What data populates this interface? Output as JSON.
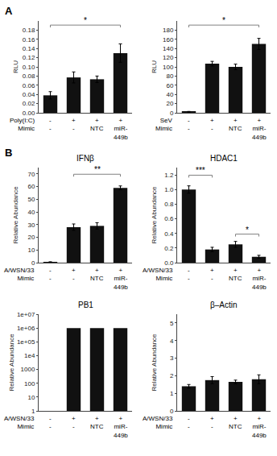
{
  "chart_data": [
    {
      "type": "bar",
      "panel_label": "A",
      "categories": [
        "-\n-",
        "+\n-",
        "+\nNTC",
        "+\nmiR-\n449b"
      ],
      "row_labels": [
        "Poly(I:C)",
        "Mimic"
      ],
      "ylabel": "RLU",
      "values": [
        0.038,
        0.077,
        0.073,
        0.13
      ],
      "errors": [
        0.008,
        0.012,
        0.007,
        0.02
      ],
      "color": "#111111",
      "ylim": [
        0,
        0.2
      ],
      "yticks": [
        {
          "value": 0,
          "label": "0.00"
        },
        0.02,
        0.04,
        0.06,
        0.08,
        {
          "value": 0.1,
          "label": "0.10"
        },
        0.12,
        0.14,
        0.16,
        0.18
      ],
      "grid": false,
      "annotations": [
        {
          "x1": 0,
          "x2": 3,
          "y": 0.191,
          "text": "*"
        }
      ]
    },
    {
      "type": "bar",
      "categories": [
        "-\n-",
        "+\n-",
        "+\nNTC",
        "+\nmiR-\n449b"
      ],
      "row_labels": [
        "SeV",
        "Mimic"
      ],
      "ylabel": "RLU",
      "values": [
        2.0,
        107,
        100,
        150
      ],
      "errors": [
        1.0,
        5,
        6,
        12
      ],
      "color": "#111111",
      "ylim": [
        0,
        200
      ],
      "yticks": [
        0,
        20,
        40,
        60,
        80,
        100,
        120,
        140,
        160,
        180
      ],
      "grid": false,
      "annotations": [
        {
          "x1": 0,
          "x2": 3,
          "y": 191,
          "text": "*"
        }
      ]
    },
    {
      "type": "bar",
      "panel_label": "B",
      "title": "IFNβ",
      "categories": [
        "-\n-",
        "+\n-",
        "+\nNTC",
        "+\nmiR-\n449b"
      ],
      "row_labels": [
        "A/WSN/33",
        "Mimic"
      ],
      "ylabel": "Relative Abundance",
      "values": [
        0.5,
        28,
        29,
        59
      ],
      "errors": [
        0.2,
        2.5,
        2.5,
        1.5
      ],
      "color": "#111111",
      "ylim": [
        0,
        75
      ],
      "yticks": [
        0,
        10,
        20,
        30,
        40,
        50,
        60,
        70
      ],
      "grid": false,
      "annotations": [
        {
          "x1": 1,
          "x2": 3,
          "y": 69.75,
          "text": "**"
        }
      ]
    },
    {
      "type": "bar",
      "title": "HDAC1",
      "categories": [
        "-\n-",
        "+\n-",
        "+\nNTC",
        "+\nmiR-\n449b"
      ],
      "row_labels": [
        "A/WSN/33",
        "Mimic"
      ],
      "ylabel": "Relative Abundance",
      "values": [
        1.0,
        0.18,
        0.25,
        0.08
      ],
      "errors": [
        0.05,
        0.03,
        0.04,
        0.02
      ],
      "color": "#111111",
      "ylim": [
        0,
        1.3
      ],
      "yticks": [
        {
          "value": 0,
          "label": "0.0"
        },
        0.2,
        0.4,
        0.6,
        0.8,
        {
          "value": 1.0,
          "label": "1.0"
        },
        1.2
      ],
      "grid": false,
      "annotations": [
        {
          "x1": 0,
          "x2": 1,
          "y": 1.196,
          "text": "***"
        },
        {
          "x1": 2,
          "x2": 3,
          "y": 0.39,
          "text": "*"
        }
      ]
    },
    {
      "type": "bar",
      "title": "PB1",
      "categories": [
        "-\n-",
        "+\n-",
        "+\nNTC",
        "+\nmiR-\n449b"
      ],
      "row_labels": [
        "A/WSN/33",
        "Mimic"
      ],
      "ylabel": "Relative Abundance",
      "values": [
        1.0,
        1000000,
        1000000,
        1000000
      ],
      "color": "#111111",
      "log": "y",
      "ylim": [
        1,
        10000000
      ],
      "yticks": [
        1,
        10,
        100,
        1000,
        {
          "value": 10000,
          "label": "1e4"
        },
        {
          "value": 100000,
          "label": "1e+05"
        },
        {
          "value": 1000000,
          "label": "1e+06"
        },
        {
          "value": 10000000,
          "label": "1e+07"
        }
      ],
      "grid": false
    },
    {
      "type": "bar",
      "title": "β–Actin",
      "categories": [
        "-\n-",
        "+\n-",
        "+\nNTC",
        "+\nmiR-\n449b"
      ],
      "row_labels": [
        "A/WSN/33",
        "Mimic"
      ],
      "ylabel": "Relative Abundance",
      "values": [
        1.4,
        1.75,
        1.65,
        1.8
      ],
      "errors": [
        0.1,
        0.2,
        0.1,
        0.25
      ],
      "color": "#111111",
      "ylim": [
        0,
        5.5
      ],
      "yticks": [
        0,
        1,
        2,
        3,
        4,
        5
      ],
      "grid": false
    }
  ]
}
